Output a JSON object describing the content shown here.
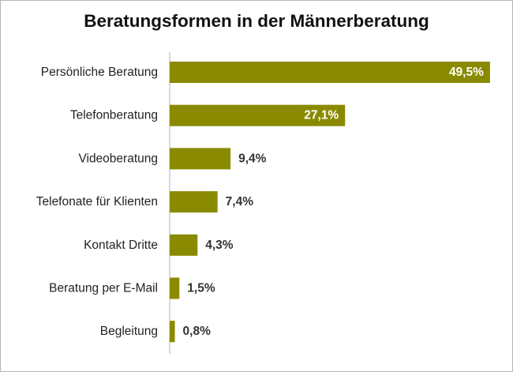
{
  "colors": {
    "bar": "#8a8a00",
    "axis": "#b0b0b0",
    "label_inside": "#ffffff",
    "label_outside": "#333333"
  },
  "chart_data": {
    "type": "bar",
    "orientation": "horizontal",
    "title": "Beratungsformen in der Männerberatung",
    "xlabel": "",
    "ylabel": "",
    "unit": "%",
    "xlim": [
      0,
      50
    ],
    "grid": false,
    "legend": "none",
    "categories": [
      "Persönliche Beratung",
      "Telefonberatung",
      "Videoberatung",
      "Telefonate für Klienten",
      "Kontakt Dritte",
      "Beratung per E-Mail",
      "Begleitung"
    ],
    "values": [
      49.5,
      27.1,
      9.4,
      7.4,
      4.3,
      1.5,
      0.8
    ],
    "value_labels": [
      "49,5%",
      "27,1%",
      "9,4%",
      "7,4%",
      "4,3%",
      "1,5%",
      "0,8%"
    ]
  }
}
